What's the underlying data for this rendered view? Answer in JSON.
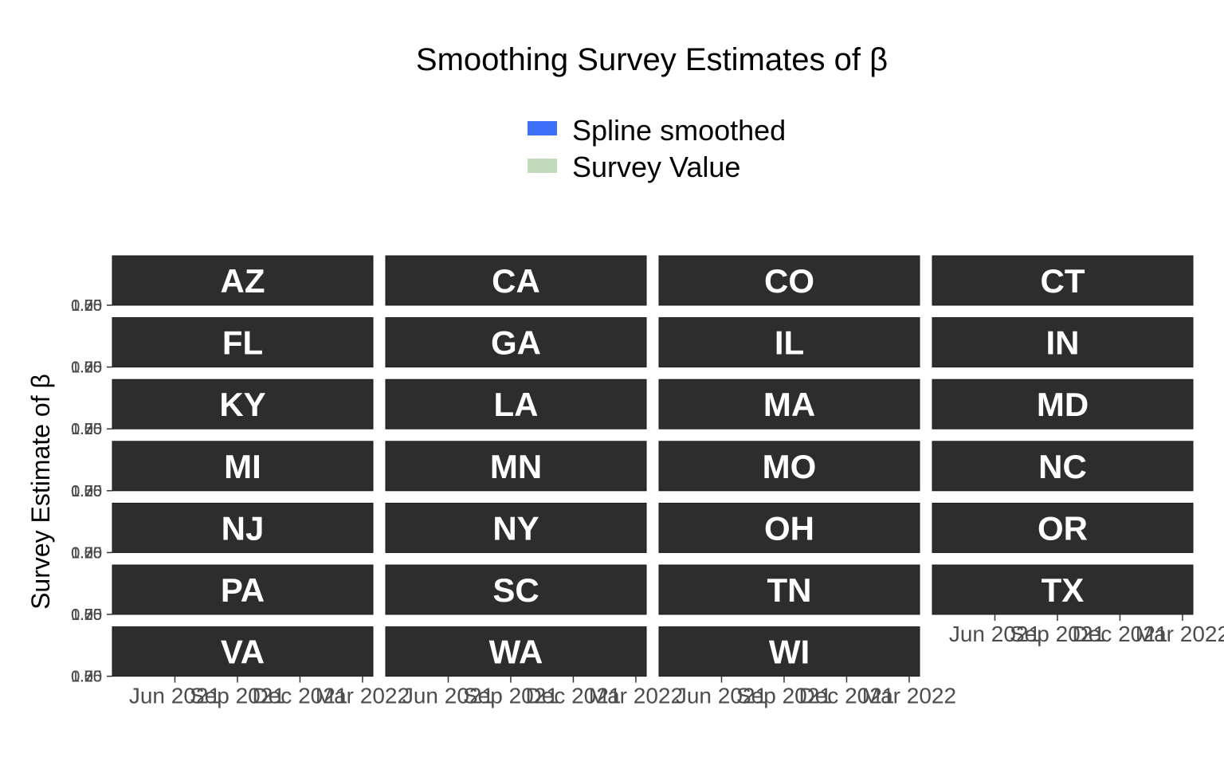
{
  "chart_data": {
    "type": "line",
    "title": "Smoothing Survey Estimates of β",
    "ylabel": "Survey Estimate of β",
    "xlabel": "",
    "legend": {
      "placement": "top",
      "entries": [
        {
          "name": "Spline smoothed",
          "color": "#3d6ff7"
        },
        {
          "name": "Survey Value",
          "color": "#c1dbba"
        }
      ]
    },
    "facets": [
      "AZ",
      "CA",
      "CO",
      "CT",
      "FL",
      "GA",
      "IL",
      "IN",
      "KY",
      "LA",
      "MA",
      "MD",
      "MI",
      "MN",
      "MO",
      "NC",
      "NJ",
      "NY",
      "OH",
      "OR",
      "PA",
      "SC",
      "TN",
      "TX",
      "VA",
      "WA",
      "WI"
    ],
    "facet_columns": 4,
    "x_ticks": [
      "Jun 2021",
      "Sep 2021",
      "Dec 2021",
      "Mar 2022"
    ],
    "y_ticks": [
      "0.20",
      "0.25",
      "0.30",
      "0.35",
      "0.40",
      "0.45",
      "0.50",
      "0.55",
      "0.60",
      "0.65",
      "0.70",
      "0.75",
      "0.80",
      "0.85",
      "0.90",
      "0.95",
      "1.00",
      "1.05",
      "1.10",
      "1.15",
      "1.20",
      "1.25",
      "1.30",
      "1.35",
      "1.40",
      "1.45",
      "1.50",
      "1.55",
      "1.60",
      "1.65",
      "1.70",
      "1.75",
      "1.80",
      "1.85",
      "1.90",
      "1.95",
      "2.00"
    ],
    "y_ticks_shown": [
      "1.00",
      "0.75",
      "0.50",
      "0.25"
    ],
    "strip_color": "#2d2d2d",
    "series": [
      {
        "name": "Spline smoothed",
        "values": []
      },
      {
        "name": "Survey Value",
        "values": []
      }
    ],
    "grid": false
  }
}
